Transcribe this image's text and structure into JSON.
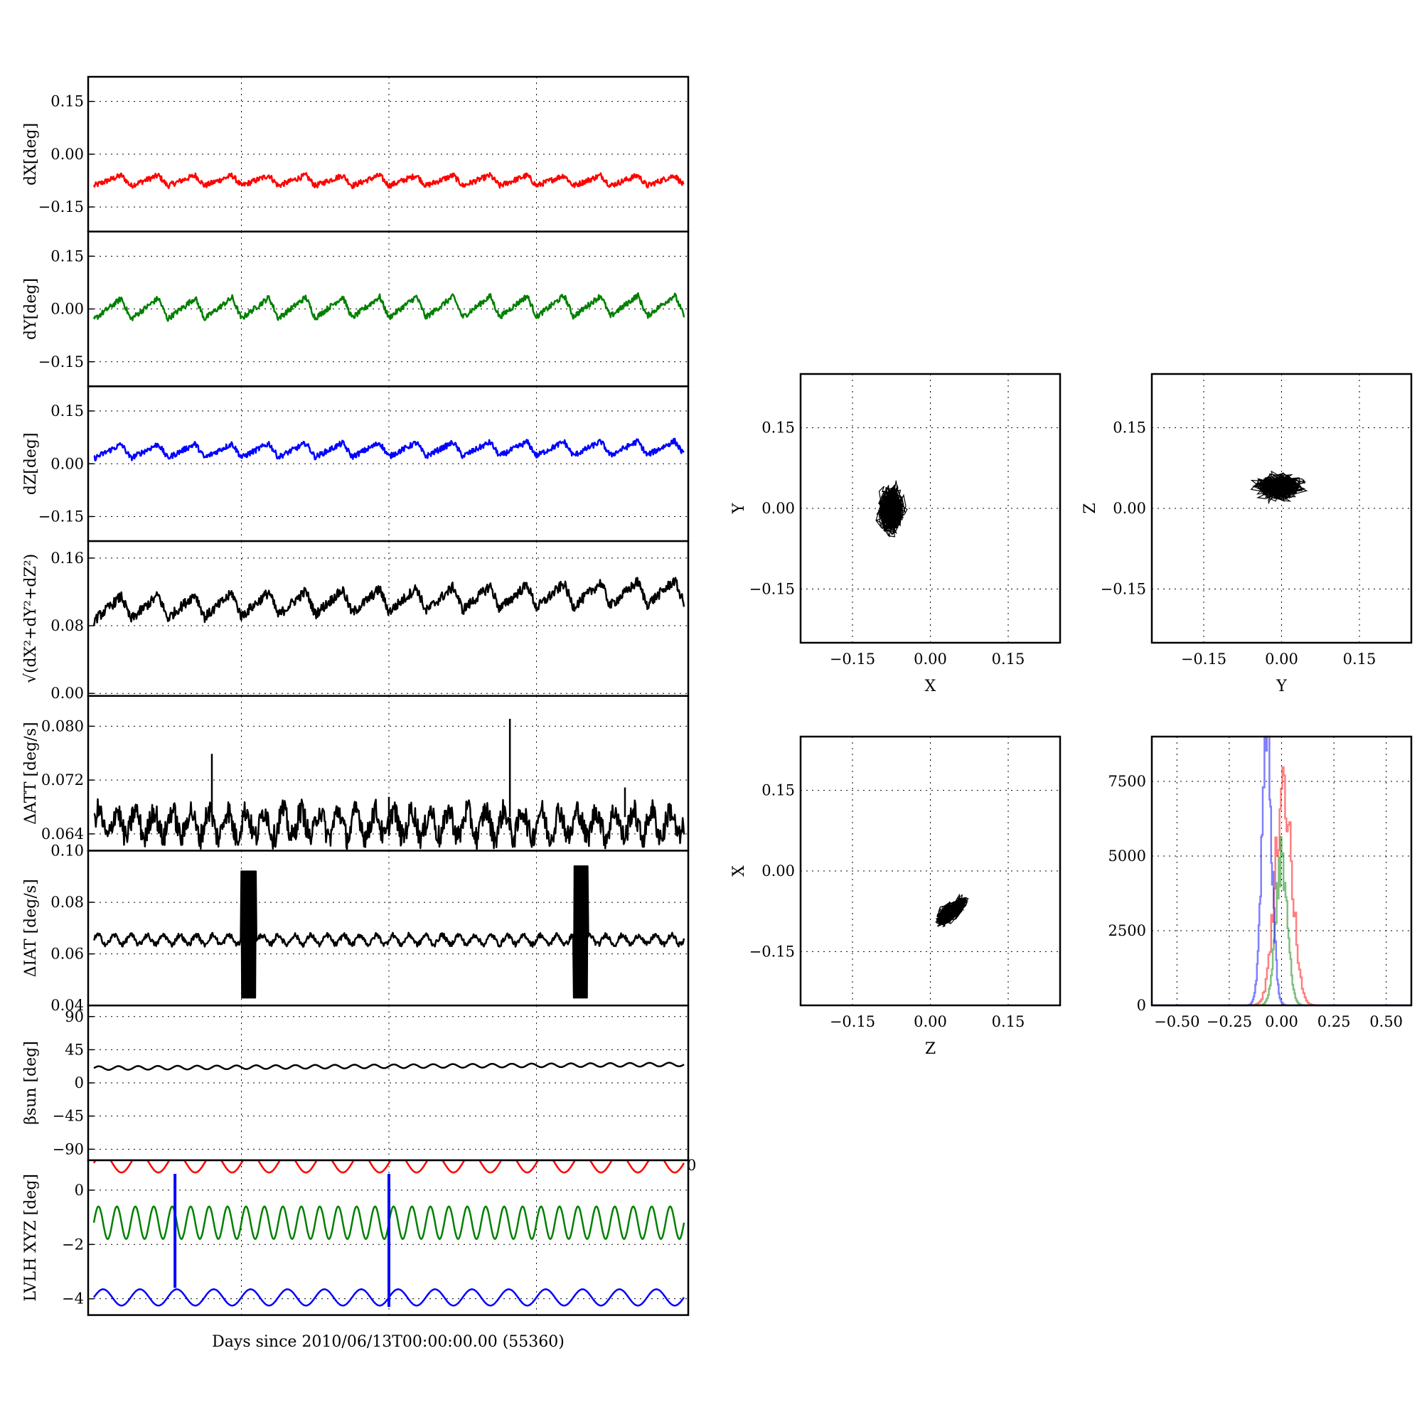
{
  "figure": {
    "xlabel": "Days since 2010/06/13T00:00:00.00 (55360)"
  },
  "chart_data": [
    {
      "type": "line",
      "id": "dX",
      "ylabel": "dX[deg]",
      "ylim": [
        -0.22,
        0.22
      ],
      "yticks": [
        0.15,
        0.0,
        -0.15
      ],
      "ytick_labels": [
        "0.15",
        "0.00",
        "−0.15"
      ],
      "xlim": [
        0,
        4
      ],
      "grid": true,
      "series": [
        {
          "color": "#ff0000",
          "base": -0.075,
          "amp": 0.03,
          "noise": 0.008,
          "periods": 16,
          "drift": 0.0,
          "mode": "saw"
        }
      ]
    },
    {
      "type": "line",
      "id": "dY",
      "ylabel": "dY[deg]",
      "ylim": [
        -0.22,
        0.22
      ],
      "yticks": [
        0.15,
        0.0,
        -0.15
      ],
      "ytick_labels": [
        "0.15",
        "0.00",
        "−0.15"
      ],
      "xlim": [
        0,
        4
      ],
      "grid": true,
      "series": [
        {
          "color": "#008000",
          "base": 0.0,
          "amp": 0.06,
          "noise": 0.008,
          "periods": 16,
          "drift": 0.01,
          "mode": "saw"
        }
      ]
    },
    {
      "type": "line",
      "id": "dZ",
      "ylabel": "dZ[deg]",
      "ylim": [
        -0.22,
        0.22
      ],
      "yticks": [
        0.15,
        0.0,
        -0.15
      ],
      "ytick_labels": [
        "0.15",
        "0.00",
        "−0.15"
      ],
      "xlim": [
        0,
        4
      ],
      "grid": true,
      "series": [
        {
          "color": "#0000ff",
          "base": 0.035,
          "amp": 0.04,
          "noise": 0.008,
          "periods": 16,
          "drift": 0.01,
          "mode": "saw"
        }
      ]
    },
    {
      "type": "line",
      "id": "norm",
      "ylabel": "√(dX²+dY²+dZ²)",
      "ylim": [
        -0.003,
        0.18
      ],
      "yticks": [
        0.16,
        0.08,
        0.0
      ],
      "ytick_labels": [
        "0.16",
        "0.08",
        "0.00"
      ],
      "xlim": [
        0,
        4
      ],
      "grid": true,
      "series": [
        {
          "color": "#000000",
          "base": 0.1,
          "amp": 0.028,
          "noise": 0.006,
          "periods": 16,
          "drift": 0.02,
          "mode": "saw"
        }
      ]
    },
    {
      "type": "line",
      "id": "datt",
      "ylabel": "ΔATT [deg/s]",
      "ylim": [
        0.0615,
        0.0845
      ],
      "yticks": [
        0.08,
        0.072,
        0.064
      ],
      "ytick_labels": [
        "0.080",
        "0.072",
        "0.064"
      ],
      "xlim": [
        0,
        4
      ],
      "grid": true,
      "series": [
        {
          "color": "#000000",
          "base": 0.0655,
          "amp": 0.002,
          "noise": 0.0018,
          "periods": 32,
          "drift": 0.0,
          "mode": "sin",
          "spikes": [
            [
              0.8,
              0.0759
            ],
            [
              2.82,
              0.0811
            ],
            [
              3.6,
              0.0709
            ],
            [
              2.0,
              0.0695
            ]
          ]
        }
      ]
    },
    {
      "type": "line",
      "id": "diat",
      "ylabel": "ΔIAT [deg/s]",
      "ylim": [
        0.04,
        0.1
      ],
      "yticks": [
        0.1,
        0.08,
        0.06,
        0.04
      ],
      "ytick_labels": [
        "0.10",
        "0.08",
        "0.06",
        "0.04"
      ],
      "xlim": [
        0,
        4
      ],
      "grid": true,
      "series": [
        {
          "color": "#000000",
          "base": 0.0655,
          "amp": 0.0018,
          "noise": 0.001,
          "periods": 36,
          "drift": 0.0,
          "mode": "sin",
          "bursts": [
            [
              1.0,
              1.1,
              0.043,
              0.092
            ],
            [
              3.25,
              3.35,
              0.043,
              0.094
            ]
          ]
        }
      ]
    },
    {
      "type": "line",
      "id": "beta",
      "ylabel": "βsun [deg]",
      "ylim": [
        -105,
        105
      ],
      "yticks": [
        90,
        45,
        0,
        -45,
        -90
      ],
      "ytick_labels": [
        "90",
        "45",
        "0",
        "−45",
        "−90"
      ],
      "xlim": [
        0,
        4
      ],
      "grid": true,
      "series": [
        {
          "color": "#000000",
          "base": 20,
          "amp": 2.5,
          "noise": 0.0,
          "periods": 30,
          "drift": 5,
          "mode": "sin"
        }
      ]
    },
    {
      "type": "line",
      "id": "lvlh",
      "ylabel": "LVLH XYZ [deg]",
      "ylim": [
        -4.6,
        1.1
      ],
      "yticks": [
        0,
        -2,
        -4
      ],
      "ytick_labels": [
        "0",
        "−2",
        "−4"
      ],
      "xlim": [
        0,
        4
      ],
      "grid": true,
      "corner_label": "0",
      "series": [
        {
          "color": "#ff0000",
          "base": 1.0,
          "amp": 0.35,
          "noise": 0.0,
          "periods": 16,
          "drift": 0.0,
          "mode": "sin"
        },
        {
          "color": "#008000",
          "base": -1.2,
          "amp": 0.6,
          "noise": 0.0,
          "periods": 32,
          "drift": 0.0,
          "mode": "sin"
        },
        {
          "color": "#0000ff",
          "base": -3.95,
          "amp": 0.3,
          "noise": 0.0,
          "periods": 16,
          "drift": 0.0,
          "mode": "sin"
        }
      ],
      "vlines": [
        [
          0.55,
          -3.6,
          0.6
        ],
        [
          2.0,
          -4.3,
          0.6
        ]
      ]
    },
    {
      "type": "scatter",
      "id": "xy",
      "xlabel": "X",
      "ylabel": "Y",
      "xlim": [
        -0.25,
        0.25
      ],
      "ylim": [
        -0.25,
        0.25
      ],
      "xticks": [
        -0.15,
        0.0,
        0.15
      ],
      "yticks": [
        0.15,
        0.0,
        -0.15
      ],
      "xtick_labels": [
        "−0.15",
        "0.00",
        "0.15"
      ],
      "ytick_labels": [
        "0.15",
        "0.00",
        "−0.15"
      ],
      "grid": true,
      "cloud": {
        "cx": -0.075,
        "cy": -0.005,
        "rx": 0.05,
        "ry": 0.07,
        "tilt": 0.7
      }
    },
    {
      "type": "scatter",
      "id": "yz",
      "xlabel": "Y",
      "ylabel": "Z",
      "xlim": [
        -0.25,
        0.25
      ],
      "ylim": [
        -0.25,
        0.25
      ],
      "xticks": [
        -0.15,
        0.0,
        0.15
      ],
      "yticks": [
        0.15,
        0.0,
        -0.15
      ],
      "xtick_labels": [
        "−0.15",
        "0.00",
        "0.15"
      ],
      "ytick_labels": [
        "0.15",
        "0.00",
        "−0.15"
      ],
      "grid": true,
      "cloud": {
        "cx": -0.005,
        "cy": 0.04,
        "rx": 0.075,
        "ry": 0.04,
        "tilt": 0.0
      }
    },
    {
      "type": "scatter",
      "id": "zx",
      "xlabel": "Z",
      "ylabel": "X",
      "xlim": [
        -0.25,
        0.25
      ],
      "ylim": [
        -0.25,
        0.25
      ],
      "xticks": [
        -0.15,
        0.0,
        0.15
      ],
      "yticks": [
        0.15,
        0.0,
        -0.15
      ],
      "xtick_labels": [
        "−0.15",
        "0.00",
        "0.15"
      ],
      "ytick_labels": [
        "0.15",
        "0.00",
        "−0.15"
      ],
      "grid": true,
      "cloud": {
        "cx": 0.04,
        "cy": -0.075,
        "rx": 0.055,
        "ry": 0.03,
        "tilt": 0.55
      }
    },
    {
      "type": "histogram",
      "id": "hist",
      "xlim": [
        -0.62,
        0.62
      ],
      "ylim": [
        0,
        9000
      ],
      "xticks": [
        -0.5,
        -0.25,
        0.0,
        0.25,
        0.5
      ],
      "yticks": [
        7500,
        5000,
        2500,
        0
      ],
      "xtick_labels": [
        "−0.50",
        "−0.25",
        "0.00",
        "0.25",
        "0.50"
      ],
      "ytick_labels": [
        "7500",
        "5000",
        "2500",
        "0"
      ],
      "grid": true,
      "series": [
        {
          "color": "#ff0000",
          "center": 0.01,
          "width": 0.05,
          "peak": 7700,
          "jag": [
            7700,
            5100,
            6200,
            4300
          ]
        },
        {
          "color": "#008000",
          "center": 0.0,
          "width": 0.035,
          "peak": 5000,
          "jag": [
            5000,
            4200,
            3000
          ]
        },
        {
          "color": "#0000ff",
          "center": -0.07,
          "width": 0.03,
          "peak": 9000,
          "jag": [
            9000,
            5800,
            4500,
            5100
          ]
        }
      ]
    }
  ]
}
